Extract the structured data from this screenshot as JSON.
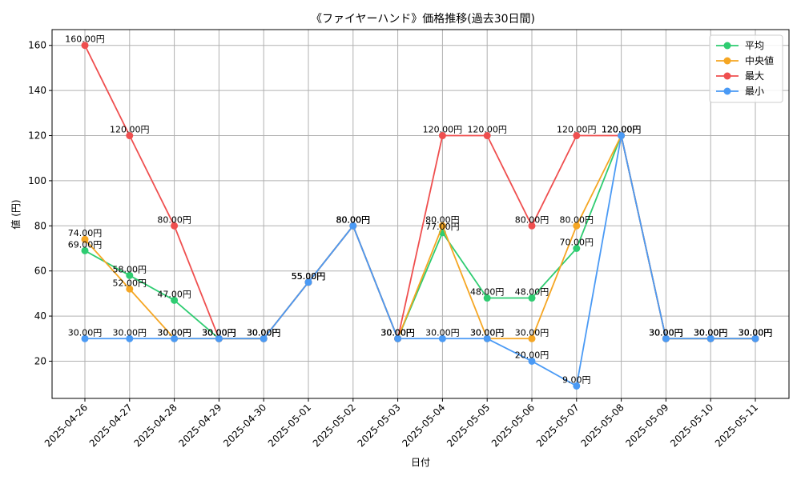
{
  "chart_data": {
    "type": "line",
    "title": "《ファイヤーハンド》価格推移(過去30日間)",
    "xlabel": "日付",
    "ylabel": "値 (円)",
    "x": [
      "2025-04-26",
      "2025-04-27",
      "2025-04-28",
      "2025-04-29",
      "2025-04-30",
      "2025-05-01",
      "2025-05-02",
      "2025-05-03",
      "2025-05-04",
      "2025-05-05",
      "2025-05-06",
      "2025-05-07",
      "2025-05-08",
      "2025-05-09",
      "2025-05-10",
      "2025-05-11"
    ],
    "yticks": [
      "20",
      "40",
      "60",
      "80",
      "100",
      "120",
      "140",
      "160"
    ],
    "ylim": [
      3.5,
      167
    ],
    "grid": true,
    "legend_position": "top-right",
    "series": [
      {
        "name": "平均",
        "color": "#2ecc71",
        "values": [
          69,
          58,
          47,
          30,
          30,
          55,
          80,
          30,
          77,
          48,
          48,
          70,
          120,
          30,
          30,
          30
        ],
        "labels": [
          "69.00円",
          "58.00円",
          "47.00円",
          "30.00円",
          "30.00円",
          "55.00円",
          "80.00円",
          "30.00円",
          "77.00円",
          "48.00円",
          "48.00円",
          "70.00円",
          "120.00円",
          "30.00円",
          "30.00円",
          "30.00円"
        ]
      },
      {
        "name": "中央値",
        "color": "#f5a623",
        "values": [
          74,
          52,
          30,
          30,
          30,
          55,
          80,
          30,
          80,
          30,
          30,
          80,
          120,
          30,
          30,
          30
        ],
        "labels": [
          "74.00円",
          "52.00円",
          "30.00円",
          "30.00円",
          "30.00円",
          "55.00円",
          "80.00円",
          "30.00円",
          "80.00円",
          "30.00円",
          "30.00円",
          "80.00円",
          "120.00円",
          "30.00円",
          "30.00円",
          "30.00円"
        ]
      },
      {
        "name": "最大",
        "color": "#ef4f4f",
        "values": [
          160,
          120,
          80,
          30,
          30,
          55,
          80,
          30,
          120,
          120,
          80,
          120,
          120,
          30,
          30,
          30
        ],
        "labels": [
          "160.00円",
          "120.00円",
          "80.00円",
          "30.00円",
          "30.00円",
          "55.00円",
          "80.00円",
          "30.00円",
          "120.00円",
          "120.00円",
          "80.00円",
          "120.00円",
          "120.00円",
          "30.00円",
          "30.00円",
          "30.00円"
        ]
      },
      {
        "name": "最小",
        "color": "#4a9af5",
        "values": [
          30,
          30,
          30,
          30,
          30,
          55,
          80,
          30,
          30,
          30,
          20,
          9,
          120,
          30,
          30,
          30
        ],
        "labels": [
          "30.00円",
          "30.00円",
          "30.00円",
          "30.00円",
          "30.00円",
          "55.00円",
          "80.00円",
          "30.00円",
          "30.00円",
          "30.00円",
          "20.00円",
          "9.00円",
          "120.00円",
          "30.00円",
          "30.00円",
          "30.00円"
        ]
      }
    ]
  }
}
